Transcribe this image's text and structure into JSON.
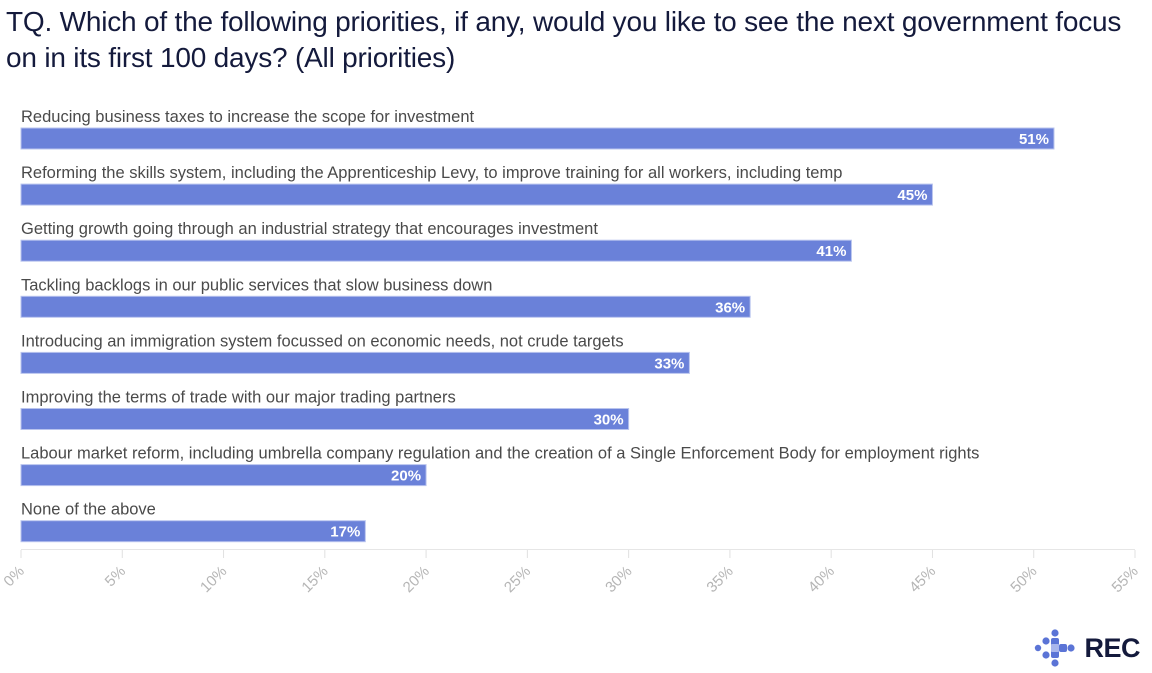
{
  "chart_data": {
    "type": "bar",
    "orientation": "horizontal",
    "title": "TQ. Which of the following priorities, if any, would you like to see the next government focus on in its first 100 days? (All priorities)",
    "xlabel": "",
    "ylabel": "",
    "xlim": [
      0,
      55
    ],
    "x_ticks": [
      0,
      5,
      10,
      15,
      20,
      25,
      30,
      35,
      40,
      45,
      50,
      55
    ],
    "x_tick_labels": [
      "0%",
      "5%",
      "10%",
      "15%",
      "20%",
      "25%",
      "30%",
      "35%",
      "40%",
      "45%",
      "50%",
      "55%"
    ],
    "grid": false,
    "legend": "none",
    "bar_color": "#6a81d9",
    "categories": [
      "Reducing business taxes to increase the scope for investment",
      "Reforming the skills system, including the Apprenticeship Levy, to improve training for all workers, including temp",
      "Getting growth going through an industrial strategy that encourages investment",
      "Tackling backlogs in our public services that slow business down",
      "Introducing an immigration system focussed on economic needs, not crude targets",
      "Improving the terms of trade with our major trading partners",
      "Labour market reform, including umbrella company regulation and the creation of a Single Enforcement Body for employment rights",
      "None of the above"
    ],
    "values": [
      51,
      45,
      41,
      36,
      33,
      30,
      20,
      17
    ],
    "value_labels": [
      "51%",
      "45%",
      "41%",
      "36%",
      "33%",
      "30%",
      "20%",
      "17%"
    ]
  },
  "header": {
    "title": "TQ. Which of the following priorities, if any, would you like to see the next government focus on in its first 100 days? (All priorities)"
  },
  "branding": {
    "logo_text": "REC",
    "logo_color": "#141a3c",
    "accent_color": "#5b74d6"
  }
}
